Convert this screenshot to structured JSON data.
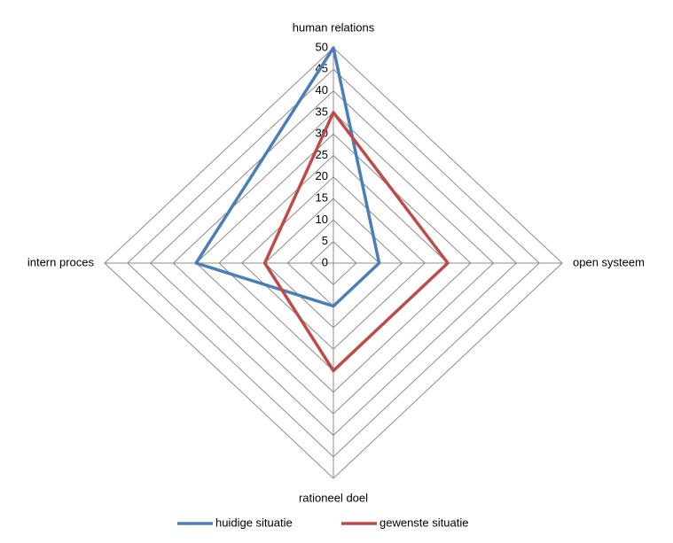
{
  "chart_data": {
    "type": "radar",
    "categories": [
      "human relations",
      "open systeem",
      "rationeel doel",
      "intern proces"
    ],
    "series": [
      {
        "name": "huidige situatie",
        "color": "#4a7ebb",
        "values": [
          50,
          10,
          10,
          30
        ]
      },
      {
        "name": "gewenste situatie",
        "color": "#be4b48",
        "values": [
          35,
          25,
          25,
          15
        ]
      }
    ],
    "ylim": [
      0,
      50
    ],
    "yticks": [
      0,
      5,
      10,
      15,
      20,
      25,
      30,
      35,
      40,
      45,
      50
    ],
    "grid": true,
    "legend": "bottom"
  }
}
